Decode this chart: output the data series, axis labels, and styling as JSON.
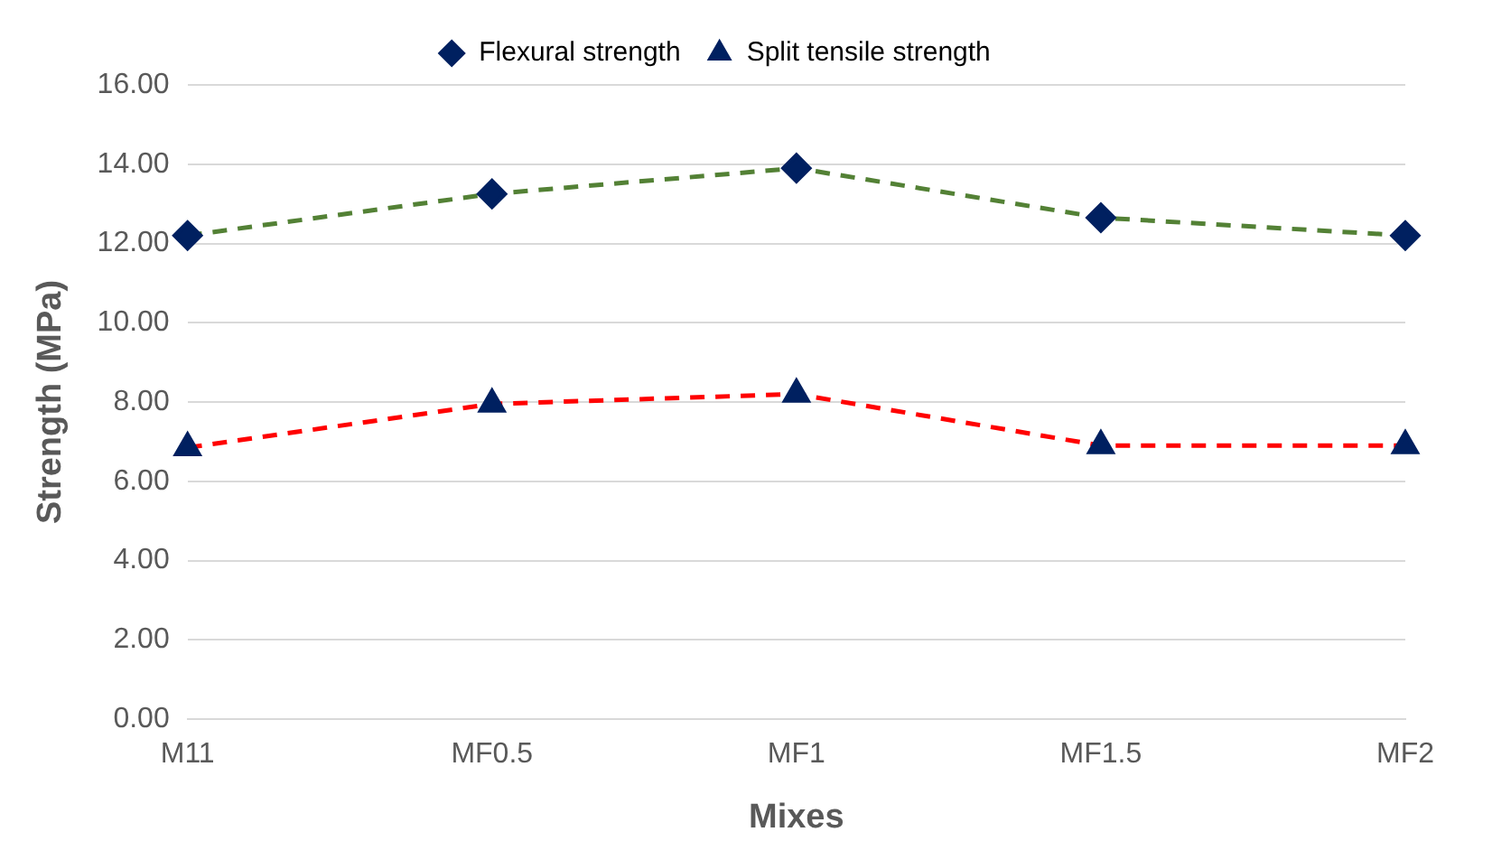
{
  "chart_data": {
    "type": "line",
    "xlabel": "Mixes",
    "ylabel": "Strength (MPa)",
    "categories": [
      "M11",
      "MF0.5",
      "MF1",
      "MF1.5",
      "MF2"
    ],
    "series": [
      {
        "name": "Flexural strength",
        "color": "#538135",
        "marker": "diamond",
        "values": [
          12.2,
          13.25,
          13.9,
          12.65,
          12.2
        ]
      },
      {
        "name": "Split tensile strength",
        "color": "#ff0000",
        "marker": "triangle",
        "values": [
          6.85,
          7.95,
          8.2,
          6.9,
          6.9
        ]
      }
    ],
    "ylim": [
      0,
      16
    ],
    "yticks": [
      {
        "value": 0,
        "label": "0.00"
      },
      {
        "value": 2,
        "label": "2.00"
      },
      {
        "value": 4,
        "label": "4.00"
      },
      {
        "value": 6,
        "label": "6.00"
      },
      {
        "value": 8,
        "label": "8.00"
      },
      {
        "value": 10,
        "label": "10.00"
      },
      {
        "value": 12,
        "label": "12.00"
      },
      {
        "value": 14,
        "label": "14.00"
      },
      {
        "value": 16,
        "label": "16.00"
      }
    ],
    "grid": "y",
    "legend": "top",
    "line_style": "dashed"
  }
}
